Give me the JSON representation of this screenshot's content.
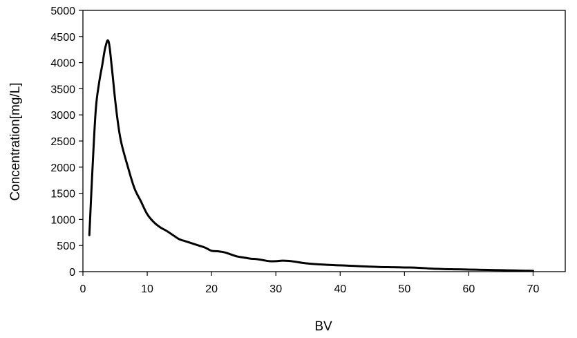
{
  "chart_data": {
    "type": "line",
    "title": "",
    "xlabel": "BV",
    "ylabel": "Concentration[mg/L]",
    "xlim": [
      0,
      75
    ],
    "ylim": [
      0,
      5000
    ],
    "xticks": [
      "0",
      "10",
      "20",
      "30",
      "40",
      "50",
      "60",
      "70"
    ],
    "yticks": [
      "0",
      "500",
      "1000",
      "1500",
      "2000",
      "2500",
      "3000",
      "3500",
      "4000",
      "4500",
      "5000"
    ],
    "grid": false,
    "legend": "none",
    "series": [
      {
        "color": "#000000",
        "x": [
          1,
          1.5,
          2,
          2.5,
          3,
          3.5,
          4,
          4.5,
          5,
          5.5,
          6,
          7,
          8,
          9,
          10,
          11,
          12,
          13,
          14,
          15,
          16,
          17,
          18,
          19,
          20,
          21,
          22,
          23,
          24,
          25,
          26,
          27,
          28,
          29,
          30,
          31,
          32,
          33,
          34,
          35,
          36,
          38,
          40,
          42,
          44,
          46,
          48,
          50,
          52,
          54,
          56,
          58,
          60,
          62,
          64,
          66,
          68,
          70
        ],
        "y": [
          700,
          2000,
          3100,
          3600,
          3950,
          4300,
          4400,
          3900,
          3300,
          2800,
          2450,
          2000,
          1600,
          1350,
          1100,
          950,
          850,
          780,
          700,
          620,
          580,
          540,
          500,
          460,
          400,
          390,
          370,
          330,
          290,
          270,
          250,
          240,
          220,
          200,
          200,
          210,
          205,
          190,
          170,
          155,
          145,
          130,
          120,
          110,
          100,
          90,
          85,
          80,
          75,
          60,
          50,
          45,
          40,
          35,
          30,
          25,
          20,
          15
        ]
      }
    ]
  }
}
